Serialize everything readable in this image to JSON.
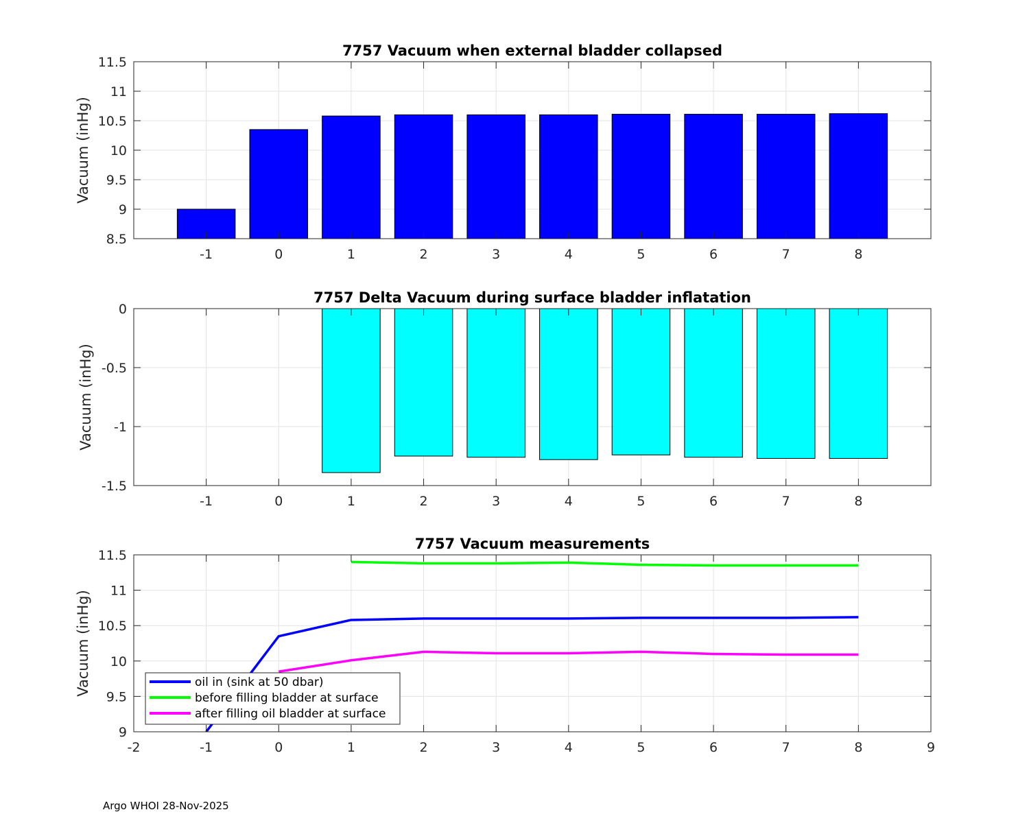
{
  "chart_data": [
    {
      "type": "bar",
      "title": "7757 Vacuum when external bladder collapsed",
      "ylabel": "Vacuum (inHg)",
      "xlabel": "",
      "categories": [
        -1,
        0,
        1,
        2,
        3,
        4,
        5,
        6,
        7,
        8
      ],
      "values": [
        9.0,
        10.35,
        10.58,
        10.6,
        10.6,
        10.6,
        10.61,
        10.61,
        10.61,
        10.62
      ],
      "xlim": [
        -2,
        9
      ],
      "ylim": [
        8.5,
        11.5
      ],
      "xticks": [
        "-1",
        "0",
        "1",
        "2",
        "3",
        "4",
        "5",
        "6",
        "7",
        "8"
      ],
      "yticks": [
        "8.5",
        "9",
        "9.5",
        "10",
        "10.5",
        "11",
        "11.5"
      ],
      "color": "#0000ff",
      "grid": true
    },
    {
      "type": "bar",
      "title": "7757 Delta Vacuum during surface bladder inflatation",
      "ylabel": "Vacuum (inHg)",
      "xlabel": "",
      "categories": [
        1,
        2,
        3,
        4,
        5,
        6,
        7,
        8
      ],
      "values": [
        -1.39,
        -1.25,
        -1.26,
        -1.28,
        -1.24,
        -1.26,
        -1.27,
        -1.27
      ],
      "xlim": [
        -2,
        9
      ],
      "ylim": [
        -1.5,
        0
      ],
      "xticks": [
        "-1",
        "0",
        "1",
        "2",
        "3",
        "4",
        "5",
        "6",
        "7",
        "8"
      ],
      "yticks": [
        "-1.5",
        "-1",
        "-0.5",
        "0"
      ],
      "color": "#00ffff",
      "grid": true
    },
    {
      "type": "line",
      "title": "7757 Vacuum measurements",
      "ylabel": "Vacuum (inHg)",
      "xlabel": "",
      "xlim": [
        -2,
        9
      ],
      "ylim": [
        9,
        11.5
      ],
      "xticks": [
        "-2",
        "-1",
        "0",
        "1",
        "2",
        "3",
        "4",
        "5",
        "6",
        "7",
        "8",
        "9"
      ],
      "yticks": [
        "9",
        "9.5",
        "10",
        "10.5",
        "11",
        "11.5"
      ],
      "grid": true,
      "legend_position": "bottom-left",
      "series": [
        {
          "name": "oil in (sink at 50 dbar)",
          "color": "#0000ff",
          "x": [
            -1,
            0,
            1,
            2,
            3,
            4,
            5,
            6,
            7,
            8
          ],
          "y": [
            9.0,
            10.35,
            10.58,
            10.6,
            10.6,
            10.6,
            10.61,
            10.61,
            10.61,
            10.62
          ]
        },
        {
          "name": "before filling bladder at surface",
          "color": "#00ff00",
          "x": [
            1,
            2,
            3,
            4,
            5,
            6,
            7,
            8
          ],
          "y": [
            11.4,
            11.38,
            11.38,
            11.39,
            11.36,
            11.35,
            11.35,
            11.35
          ]
        },
        {
          "name": "after filling oil bladder at surface",
          "color": "#ff00ff",
          "x": [
            0,
            1,
            2,
            3,
            4,
            5,
            6,
            7,
            8
          ],
          "y": [
            9.85,
            10.01,
            10.13,
            10.11,
            10.11,
            10.13,
            10.1,
            10.09,
            10.09
          ]
        }
      ]
    }
  ],
  "footer": "Argo WHOI 28-Nov-2025"
}
